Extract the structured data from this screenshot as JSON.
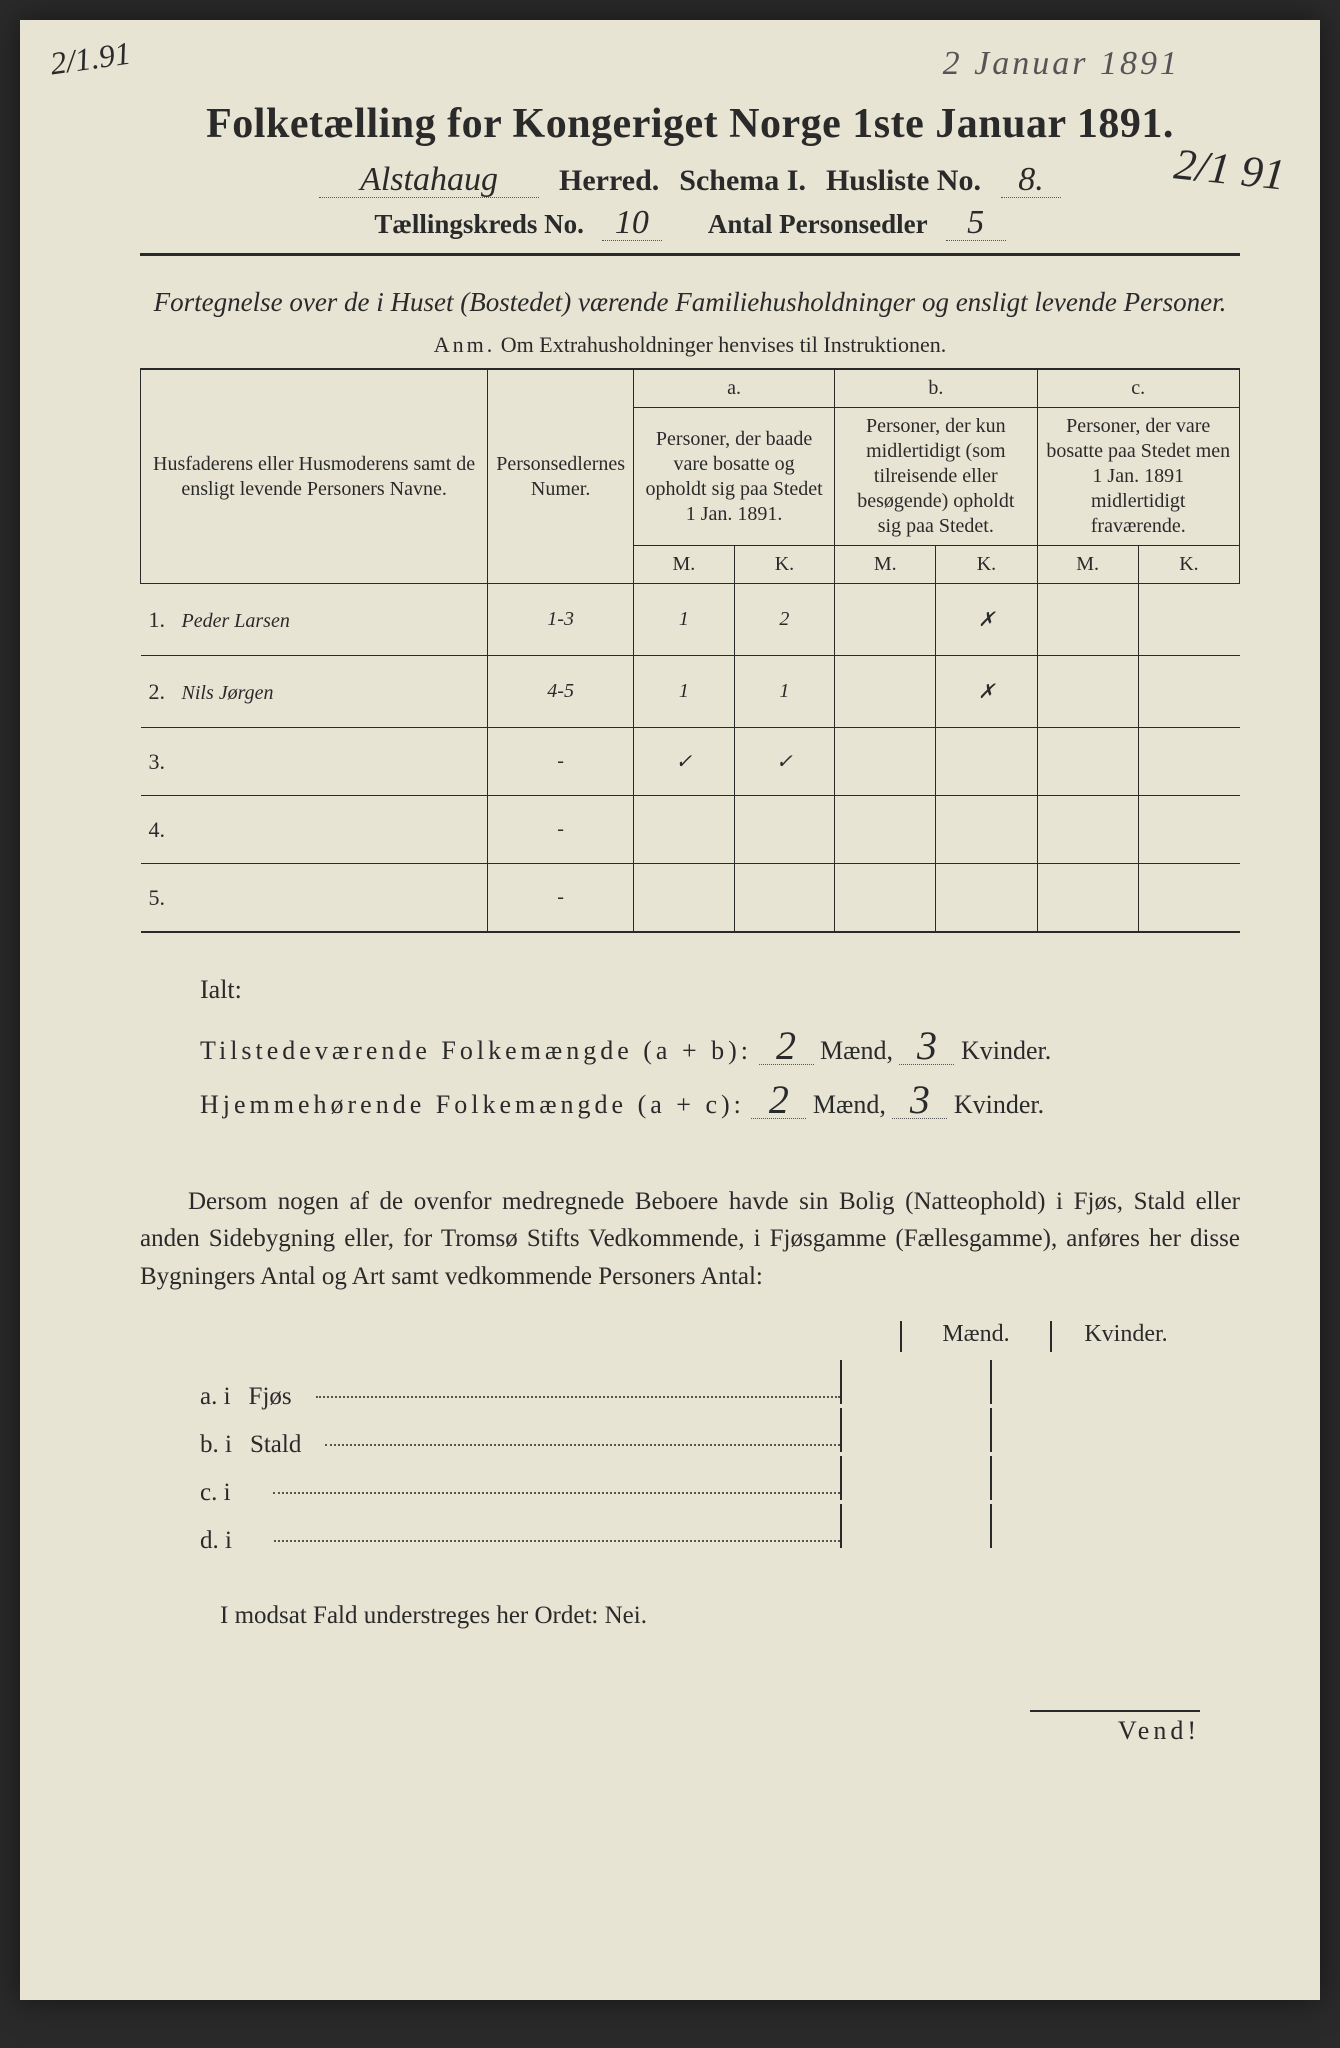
{
  "annotations": {
    "top_left": "2/1.91",
    "top_right_faint": "2 Januar 1891",
    "side_right": "2/1 91"
  },
  "header": {
    "title": "Folketælling for Kongeriget Norge 1ste Januar 1891.",
    "herred_value": "Alstahaug",
    "herred_label": "Herred.",
    "schema_label": "Schema I.",
    "husliste_label": "Husliste No.",
    "husliste_value": "8.",
    "kreds_label": "Tællingskreds No.",
    "kreds_value": "10",
    "antal_label": "Antal Personsedler",
    "antal_value": "5"
  },
  "subtitle": "Fortegnelse over de i Huset (Bostedet) værende Familiehusholdninger og ensligt levende Personer.",
  "anm": {
    "label": "Anm.",
    "text": "Om Extrahusholdninger henvises til Instruktionen."
  },
  "table": {
    "col_name": "Husfaderens eller Husmoderens samt de ensligt levende Personers Navne.",
    "col_num": "Personsedlernes Numer.",
    "col_a_label": "a.",
    "col_a": "Personer, der baade vare bosatte og opholdt sig paa Stedet 1 Jan. 1891.",
    "col_b_label": "b.",
    "col_b": "Personer, der kun midlertidigt (som tilreisende eller besøgende) opholdt sig paa Stedet.",
    "col_c_label": "c.",
    "col_c": "Personer, der vare bosatte paa Stedet men 1 Jan. 1891 midlertidigt fraværende.",
    "mk_m": "M.",
    "mk_k": "K.",
    "rows": [
      {
        "n": "1.",
        "name": "Peder Larsen",
        "num": "1-3",
        "am": "1",
        "ak": "2",
        "bm": "",
        "bk": "✗",
        "cm": "",
        "ck": ""
      },
      {
        "n": "2.",
        "name": "Nils Jørgen",
        "num": "4-5",
        "am": "1",
        "ak": "1",
        "bm": "",
        "bk": "✗",
        "cm": "",
        "ck": ""
      },
      {
        "n": "3.",
        "name": "",
        "num": "-",
        "am": "✓",
        "ak": "✓",
        "bm": "",
        "bk": "",
        "cm": "",
        "ck": ""
      },
      {
        "n": "4.",
        "name": "",
        "num": "-",
        "am": "",
        "ak": "",
        "bm": "",
        "bk": "",
        "cm": "",
        "ck": ""
      },
      {
        "n": "5.",
        "name": "",
        "num": "-",
        "am": "",
        "ak": "",
        "bm": "",
        "bk": "",
        "cm": "",
        "ck": ""
      }
    ]
  },
  "totals": {
    "ialt": "Ialt:",
    "line1_label": "Tilstedeværende Folkemængde (a + b):",
    "line2_label": "Hjemmehørende Folkemængde (a + c):",
    "maend": "Mænd,",
    "kvinder": "Kvinder.",
    "l1_m": "2",
    "l1_k": "3",
    "l2_m": "2",
    "l2_k": "3"
  },
  "paragraph": "Dersom nogen af de ovenfor medregnede Beboere havde sin Bolig (Natteophold) i Fjøs, Stald eller anden Sidebygning eller, for Tromsø Stifts Vedkommende, i Fjøsgamme (Fællesgamme), anføres her disse Bygningers Antal og Art samt vedkommende Personers Antal:",
  "sidebuildings": {
    "head_m": "Mænd.",
    "head_k": "Kvinder.",
    "rows": [
      {
        "k": "a.  i",
        "label": "Fjøs"
      },
      {
        "k": "b.  i",
        "label": "Stald"
      },
      {
        "k": "c.  i",
        "label": ""
      },
      {
        "k": "d.  i",
        "label": ""
      }
    ]
  },
  "nei_line": "I modsat Fald understreges her Ordet: Nei.",
  "vend": "Vend!",
  "colors": {
    "paper": "#e8e4d4",
    "ink": "#2a2a2a",
    "faint": "#555555"
  }
}
